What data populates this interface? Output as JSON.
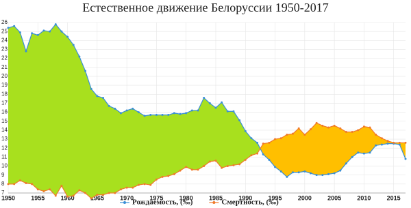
{
  "chart_data": {
    "type": "line",
    "title": "Естественное движение Белоруссии 1950-2017",
    "x": [
      1950,
      1951,
      1952,
      1953,
      1954,
      1955,
      1956,
      1957,
      1958,
      1959,
      1960,
      1961,
      1962,
      1963,
      1964,
      1965,
      1966,
      1967,
      1968,
      1969,
      1970,
      1971,
      1972,
      1973,
      1974,
      1975,
      1976,
      1977,
      1978,
      1979,
      1980,
      1981,
      1982,
      1983,
      1984,
      1985,
      1986,
      1987,
      1988,
      1989,
      1990,
      1991,
      1992,
      1993,
      1994,
      1995,
      1996,
      1997,
      1998,
      1999,
      2000,
      2001,
      2002,
      2003,
      2004,
      2005,
      2006,
      2007,
      2008,
      2009,
      2010,
      2011,
      2012,
      2013,
      2014,
      2015,
      2016,
      2017
    ],
    "series": [
      {
        "name": "Рождаемость, (‰)",
        "color": "#3a8fd6",
        "fill": "#a8e01e",
        "values": [
          25.4,
          25.6,
          24.9,
          22.8,
          24.8,
          24.6,
          25.1,
          25.0,
          25.8,
          25.0,
          24.4,
          23.5,
          22.2,
          20.6,
          18.6,
          17.8,
          17.6,
          16.7,
          16.4,
          15.9,
          16.2,
          16.4,
          16.0,
          15.6,
          15.7,
          15.7,
          15.7,
          15.7,
          15.9,
          15.8,
          15.9,
          16.2,
          16.2,
          17.6,
          17.0,
          16.5,
          17.1,
          16.1,
          16.1,
          15.1,
          13.9,
          13.1,
          12.6,
          11.3,
          10.7,
          9.9,
          9.4,
          8.8,
          9.3,
          9.3,
          9.4,
          9.2,
          9.0,
          9.0,
          9.1,
          9.2,
          9.5,
          10.3,
          11.0,
          11.5,
          11.4,
          11.5,
          12.3,
          12.4,
          12.5,
          12.5,
          12.4,
          10.8
        ]
      },
      {
        "name": "Смертность, (‰)",
        "color": "#f07a2a",
        "fill": "#ffbf00",
        "values": [
          8.0,
          8.0,
          8.4,
          8.1,
          8.0,
          7.4,
          7.2,
          7.4,
          6.7,
          7.8,
          6.6,
          6.7,
          7.3,
          7.0,
          6.4,
          6.8,
          6.8,
          7.0,
          7.0,
          7.4,
          7.6,
          7.6,
          7.9,
          8.0,
          7.9,
          8.5,
          8.8,
          8.9,
          9.1,
          9.5,
          9.9,
          9.6,
          9.6,
          10.0,
          10.5,
          10.6,
          9.8,
          10.0,
          10.1,
          10.2,
          10.7,
          11.2,
          11.4,
          12.5,
          12.6,
          13.0,
          13.1,
          13.5,
          13.6,
          14.2,
          13.5,
          14.1,
          14.8,
          14.5,
          14.3,
          14.5,
          14.2,
          13.8,
          13.8,
          14.0,
          14.4,
          14.3,
          13.5,
          13.1,
          12.8,
          12.6,
          12.6,
          12.6
        ]
      }
    ],
    "xlim": [
      1950,
      2017
    ],
    "xticks": [
      1950,
      1955,
      1960,
      1965,
      1970,
      1975,
      1980,
      1985,
      1990,
      1995,
      2000,
      2005,
      2010,
      2015
    ],
    "ylim": [
      7,
      26
    ],
    "yticks": [
      7,
      8,
      9,
      10,
      11,
      12,
      13,
      14,
      15,
      16,
      17,
      18,
      19,
      20,
      21,
      22,
      23,
      24,
      25,
      26
    ],
    "grid": true,
    "legend": "bottom"
  }
}
